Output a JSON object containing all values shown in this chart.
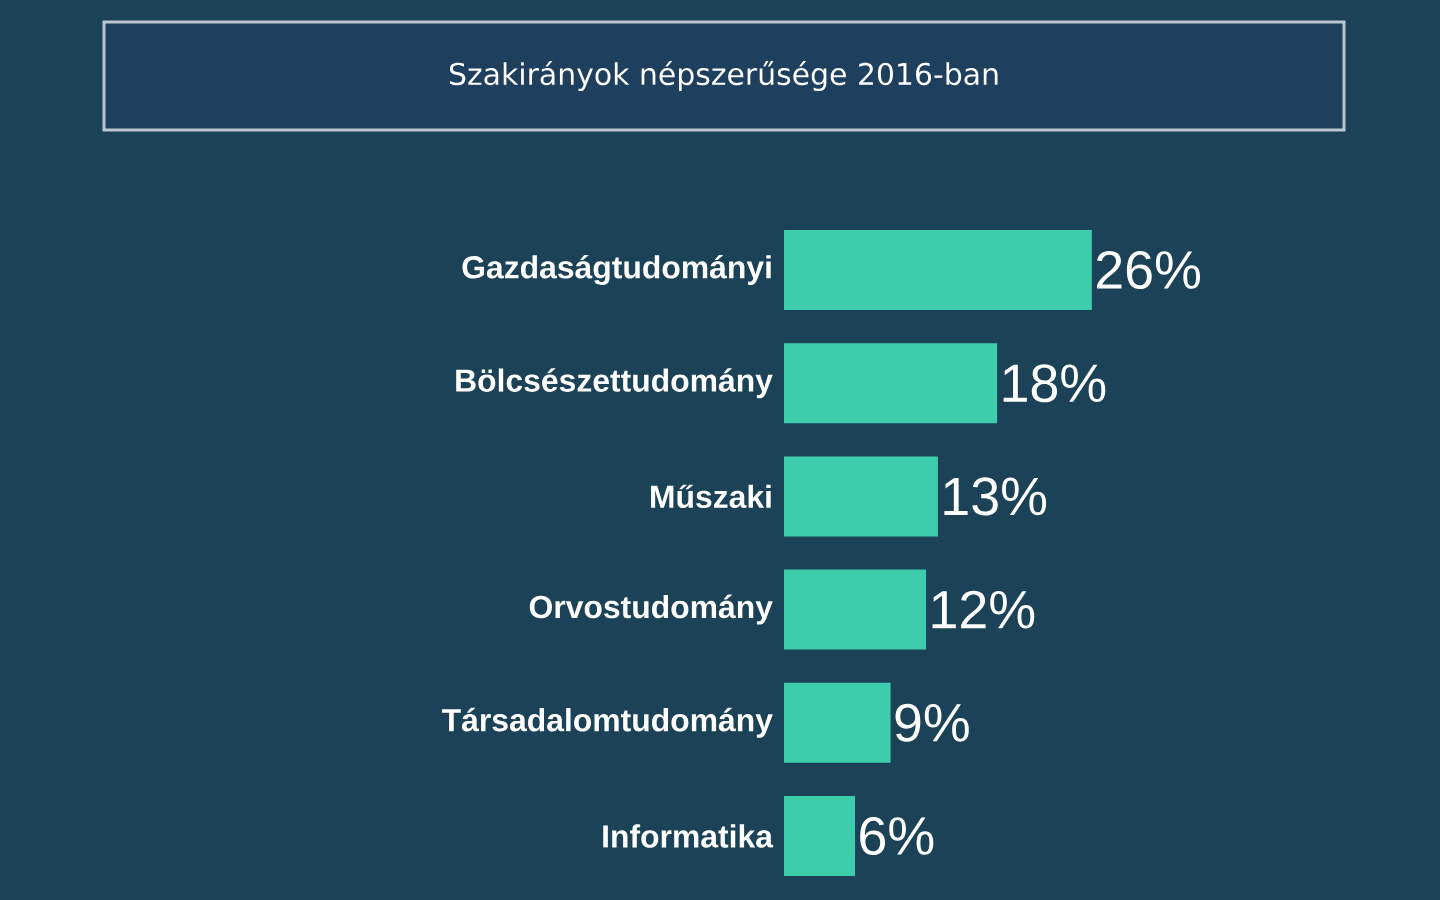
{
  "chart_data": {
    "type": "bar",
    "orientation": "horizontal",
    "title": "Szakirányok népszerűsége 2016-ban",
    "categories": [
      "Gazdaságtudományi",
      "Bölcsészettudomány",
      "Műszaki",
      "Orvostudomány",
      "Társadalomtudomány",
      "Informatika"
    ],
    "values": [
      26,
      18,
      13,
      12,
      9,
      6
    ],
    "value_labels": [
      "26%",
      "18%",
      "13%",
      "12%",
      "9%",
      "6%"
    ],
    "color": "#3ecdac"
  }
}
